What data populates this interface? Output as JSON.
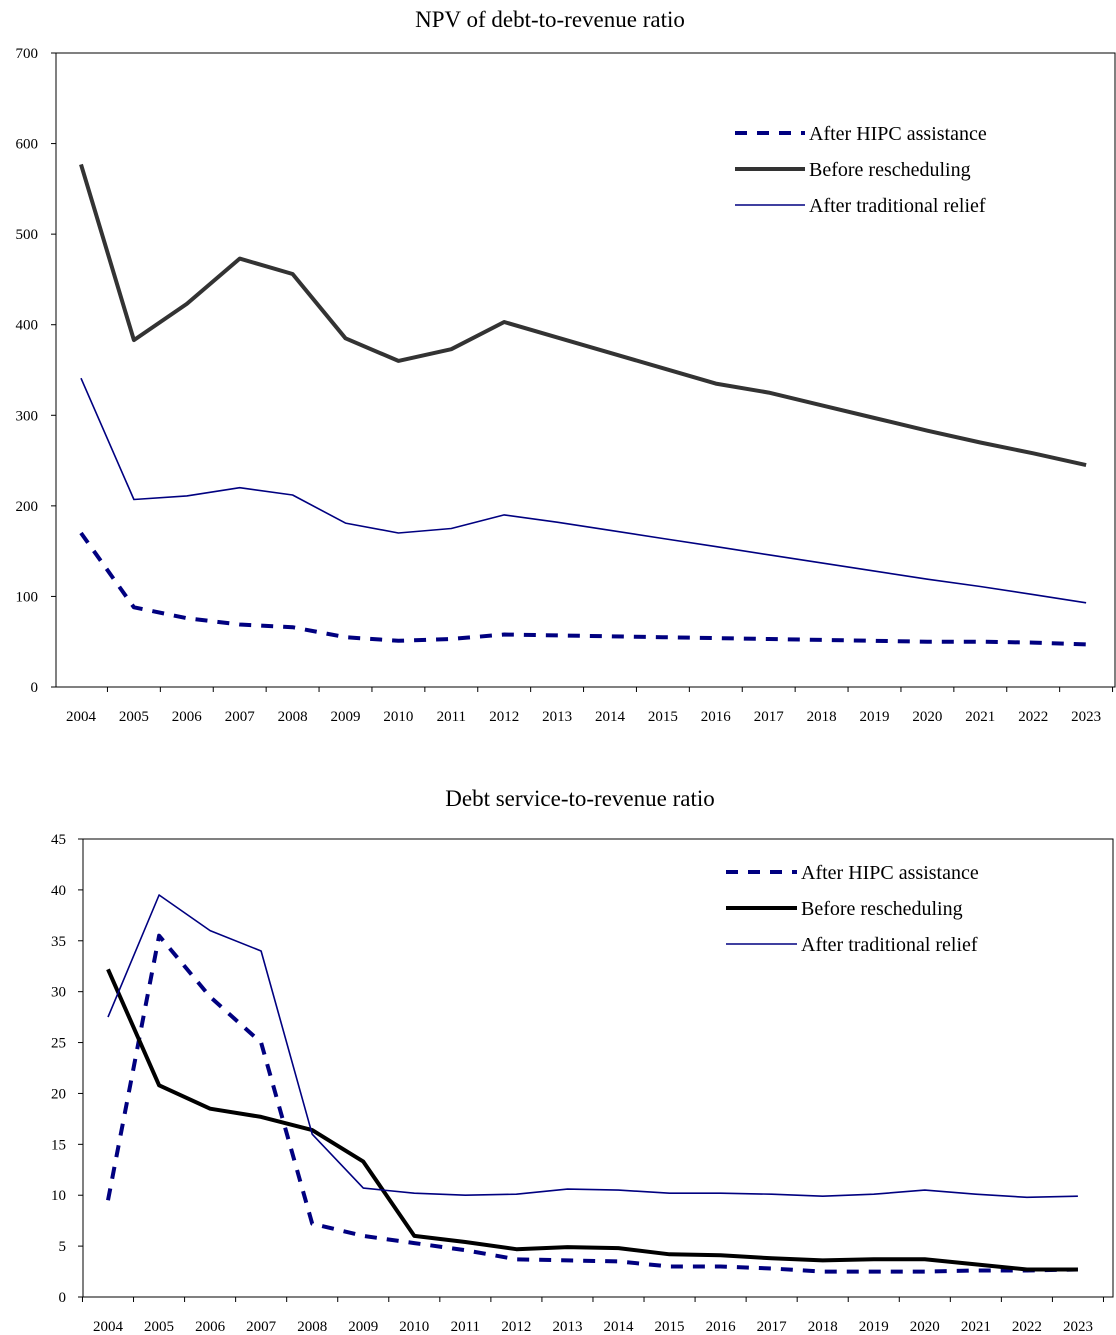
{
  "chart_data": [
    {
      "type": "line",
      "title": "NPV of debt-to-revenue ratio",
      "xlabel": "",
      "ylabel": "",
      "ylim": [
        0,
        700
      ],
      "yticks": [
        0,
        100,
        200,
        300,
        400,
        500,
        600,
        700
      ],
      "grid": false,
      "legend_position": "top-right",
      "categories": [
        "2004",
        "2005",
        "2006",
        "2007",
        "2008",
        "2009",
        "2010",
        "2011",
        "2012",
        "2013",
        "2014",
        "2015",
        "2016",
        "2017",
        "2018",
        "2019",
        "2020",
        "2021",
        "2022",
        "2023"
      ],
      "series": [
        {
          "name": "After HIPC assistance",
          "style": "dashed",
          "color": "#000080",
          "values": [
            170,
            88,
            76,
            69,
            66,
            55,
            51,
            53,
            58,
            57,
            56,
            55,
            54,
            53,
            52,
            51,
            50,
            50,
            49,
            47
          ]
        },
        {
          "name": "Before rescheduling",
          "style": "thick",
          "color": "#333333",
          "values": [
            577,
            383,
            423,
            473,
            456,
            385,
            360,
            373,
            403,
            386,
            369,
            352,
            335,
            325,
            311,
            297,
            283,
            270,
            258,
            245
          ]
        },
        {
          "name": "After traditional relief",
          "style": "thin",
          "color": "#000080",
          "values": [
            341,
            207,
            211,
            220,
            212,
            181,
            170,
            175,
            190,
            182,
            173,
            164,
            155,
            146,
            137,
            128,
            119,
            111,
            102,
            93
          ]
        }
      ]
    },
    {
      "type": "line",
      "title": "Debt service-to-revenue ratio",
      "xlabel": "",
      "ylabel": "",
      "ylim": [
        0,
        45
      ],
      "yticks": [
        0,
        5,
        10,
        15,
        20,
        25,
        30,
        35,
        40,
        45
      ],
      "grid": false,
      "legend_position": "top-right",
      "categories": [
        "2004",
        "2005",
        "2006",
        "2007",
        "2008",
        "2009",
        "2010",
        "2011",
        "2012",
        "2013",
        "2014",
        "2015",
        "2016",
        "2017",
        "2018",
        "2019",
        "2020",
        "2021",
        "2022",
        "2023"
      ],
      "series": [
        {
          "name": "After HIPC assistance",
          "style": "dashed",
          "color": "#000080",
          "values": [
            9.5,
            35.5,
            29.5,
            25,
            7.2,
            6.0,
            5.3,
            4.6,
            3.7,
            3.6,
            3.5,
            3.0,
            3.0,
            2.8,
            2.5,
            2.5,
            2.5,
            2.6,
            2.6,
            2.7
          ]
        },
        {
          "name": "Before rescheduling",
          "style": "thick",
          "color": "#000000",
          "values": [
            32.2,
            20.8,
            18.5,
            17.7,
            16.4,
            13.3,
            6.0,
            5.4,
            4.7,
            4.9,
            4.8,
            4.2,
            4.1,
            3.8,
            3.6,
            3.7,
            3.7,
            3.2,
            2.7,
            2.7
          ]
        },
        {
          "name": "After traditional relief",
          "style": "thin",
          "color": "#000080",
          "values": [
            27.5,
            39.5,
            36.0,
            34.0,
            16.0,
            10.7,
            10.2,
            10.0,
            10.1,
            10.6,
            10.5,
            10.2,
            10.2,
            10.1,
            9.9,
            10.1,
            10.5,
            10.1,
            9.8,
            9.9
          ]
        }
      ]
    }
  ]
}
